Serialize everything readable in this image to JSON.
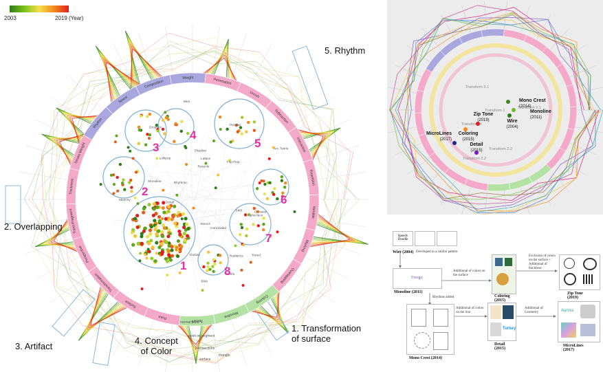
{
  "legend": {
    "start_year": "2003",
    "end_year": "2019 (Year)"
  },
  "categories": [
    {
      "name": "rhythm",
      "label": "5. Rhythm"
    },
    {
      "name": "overlapping",
      "label": "2. Overlapping"
    },
    {
      "name": "artifact",
      "label": "3. Artifact"
    },
    {
      "name": "concept-of-color",
      "label": "4. Concept\nof Color"
    },
    {
      "name": "transformation-of-surface",
      "label": "1. Transformation\nof surface"
    }
  ],
  "ring_segments": [
    "Weight",
    "Penetration",
    "Unrich",
    "Subtraction",
    "Interactive",
    "Repetition",
    "Variable",
    "Marking",
    "Overlapping",
    "Coloring",
    "Monoline",
    "Texture",
    "Point",
    "Surface",
    "Transformation",
    "Perspective",
    "Trans-Fragment",
    "Thickness",
    "Stroke Weight",
    "Rhythm",
    "Space",
    "Composition"
  ],
  "cluster_numbers": [
    "1",
    "2",
    "3",
    "4",
    "5",
    "6",
    "7",
    "8"
  ],
  "inner_labels": [
    "Concealed",
    "Flip-Flop",
    "Droplets",
    "Recycle",
    "Serifs",
    "Alpha-face",
    "Overlap",
    "Shift",
    "Shadow",
    "Lollipop",
    "Lattice",
    "Toned",
    "Monoline",
    "Wire",
    "Detail",
    "Arc-Twirls",
    "Blob",
    "Radiance",
    "Crossed",
    "Rhythmic",
    "Sketchy",
    "Outline",
    "Stencil"
  ],
  "outer_labels": [
    "normal point",
    "point on segment",
    "intersections",
    "surface",
    "triangle"
  ],
  "zoom_nodes": [
    {
      "name": "Mono Crest",
      "year": "(2014)",
      "color": "#3a8a1e"
    },
    {
      "name": "Zip Tone",
      "year": "(2019)",
      "color": "#e01f1f"
    },
    {
      "name": "Monoline",
      "year": "(2011)",
      "color": "#6fbd26"
    },
    {
      "name": "Wire",
      "year": "(2004)",
      "color": "#2a7a18"
    },
    {
      "name": "Coloring",
      "year": "(2015)",
      "color": "#f08a1c"
    },
    {
      "name": "MicroLines",
      "year": "(2017)",
      "color": "#1a2a8a"
    },
    {
      "name": "Detail",
      "year": "(2015)",
      "color": "#7a1ac4"
    }
  ],
  "zoom_transforms": [
    "Transform 3.1",
    "Transform 1",
    "Transform 2.1",
    "Transform 4",
    "Transform 2.2",
    "Transform 3.2"
  ],
  "flow": {
    "items": [
      {
        "name": "Wire",
        "year": "(2004)"
      },
      {
        "name": "Monoline",
        "year": "(2011)"
      },
      {
        "name": "Coloring",
        "year": "(2015)"
      },
      {
        "name": "Zip Tone",
        "year": "(2019)"
      },
      {
        "name": "Mono Crest",
        "year": "(2014)"
      },
      {
        "name": "Detail",
        "year": "(2015)"
      },
      {
        "name": "MicroLines",
        "year": "(2017)"
      }
    ],
    "notes": {
      "similar": "Developed in a similar pattern",
      "colors": "Additional of colors on the surface",
      "exclusion": "Exclusion of colors on the surface + Additional of thickness",
      "rhythm": "Rhythms added",
      "colors_line": "Additional of colors on the line",
      "geometry": "Additional of Geometry"
    },
    "thumb_text": {
      "speedy": "Speedy Doodle",
      "freego": "Freego",
      "turkey": "Turkey",
      "aurora": "Aurora"
    }
  }
}
